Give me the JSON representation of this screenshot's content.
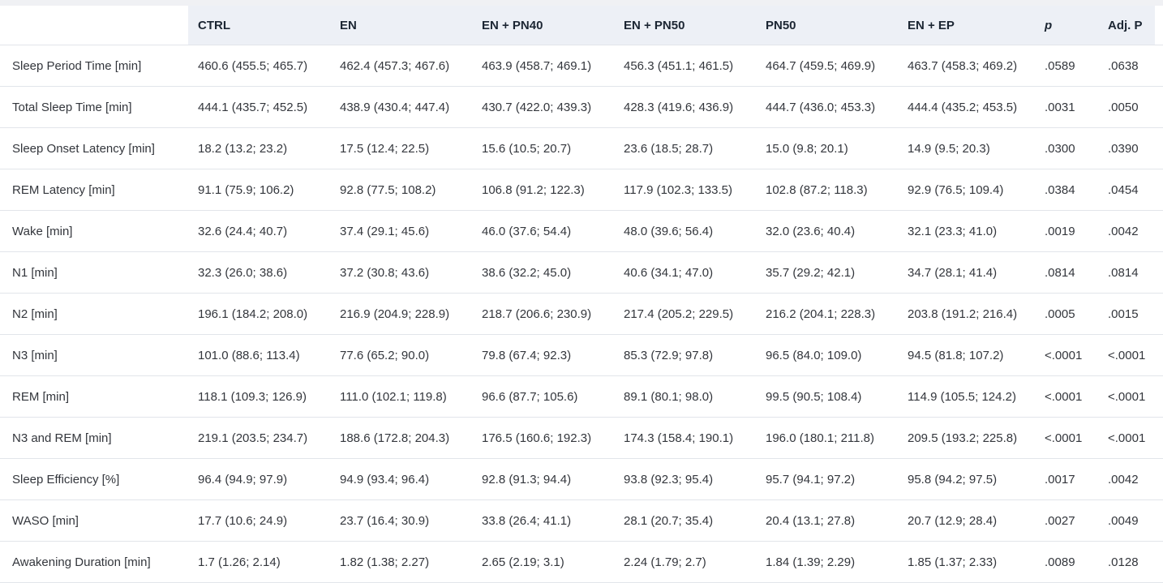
{
  "colors": {
    "page_background": "#f0f1f4",
    "header_background": "#edf0f6",
    "header_text": "#1c2633",
    "body_text": "#33363c",
    "row_border": "#e2e5ea",
    "table_background": "#ffffff"
  },
  "chart_data": {
    "type": "table",
    "columns": [
      "",
      "CTRL",
      "EN",
      "EN + PN40",
      "EN + PN50",
      "PN50",
      "EN + EP",
      "p",
      "Adj. P"
    ],
    "rows": [
      [
        "Sleep Period Time [min]",
        "460.6 (455.5; 465.7)",
        "462.4 (457.3; 467.6)",
        "463.9 (458.7; 469.1)",
        "456.3 (451.1; 461.5)",
        "464.7 (459.5; 469.9)",
        "463.7 (458.3; 469.2)",
        ".0589",
        ".0638"
      ],
      [
        "Total Sleep Time [min]",
        "444.1 (435.7; 452.5)",
        "438.9 (430.4; 447.4)",
        "430.7 (422.0; 439.3)",
        "428.3 (419.6; 436.9)",
        "444.7 (436.0; 453.3)",
        "444.4 (435.2; 453.5)",
        ".0031",
        ".0050"
      ],
      [
        "Sleep Onset Latency [min]",
        "18.2 (13.2; 23.2)",
        "17.5 (12.4; 22.5)",
        "15.6 (10.5; 20.7)",
        "23.6 (18.5; 28.7)",
        "15.0 (9.8; 20.1)",
        "14.9 (9.5; 20.3)",
        ".0300",
        ".0390"
      ],
      [
        "REM Latency [min]",
        "91.1 (75.9; 106.2)",
        "92.8 (77.5; 108.2)",
        "106.8 (91.2; 122.3)",
        "117.9 (102.3; 133.5)",
        "102.8 (87.2; 118.3)",
        "92.9 (76.5; 109.4)",
        ".0384",
        ".0454"
      ],
      [
        "Wake [min]",
        "32.6 (24.4; 40.7)",
        "37.4 (29.1; 45.6)",
        "46.0 (37.6; 54.4)",
        "48.0 (39.6; 56.4)",
        "32.0 (23.6; 40.4)",
        "32.1 (23.3; 41.0)",
        ".0019",
        ".0042"
      ],
      [
        "N1 [min]",
        "32.3 (26.0; 38.6)",
        "37.2 (30.8; 43.6)",
        "38.6 (32.2; 45.0)",
        "40.6 (34.1; 47.0)",
        "35.7 (29.2; 42.1)",
        "34.7 (28.1; 41.4)",
        ".0814",
        ".0814"
      ],
      [
        "N2 [min]",
        "196.1 (184.2; 208.0)",
        "216.9 (204.9; 228.9)",
        "218.7 (206.6; 230.9)",
        "217.4 (205.2; 229.5)",
        "216.2 (204.1; 228.3)",
        "203.8 (191.2; 216.4)",
        ".0005",
        ".0015"
      ],
      [
        "N3 [min]",
        "101.0 (88.6; 113.4)",
        "77.6 (65.2; 90.0)",
        "79.8 (67.4; 92.3)",
        "85.3 (72.9; 97.8)",
        "96.5 (84.0; 109.0)",
        "94.5 (81.8; 107.2)",
        "<.0001",
        "<.0001"
      ],
      [
        "REM [min]",
        "118.1 (109.3; 126.9)",
        "111.0 (102.1; 119.8)",
        "96.6 (87.7; 105.6)",
        "89.1 (80.1; 98.0)",
        "99.5 (90.5; 108.4)",
        "114.9 (105.5; 124.2)",
        "<.0001",
        "<.0001"
      ],
      [
        "N3 and REM [min]",
        "219.1 (203.5; 234.7)",
        "188.6 (172.8; 204.3)",
        "176.5 (160.6; 192.3)",
        "174.3 (158.4; 190.1)",
        "196.0 (180.1; 211.8)",
        "209.5 (193.2; 225.8)",
        "<.0001",
        "<.0001"
      ],
      [
        "Sleep Efficiency [%]",
        "96.4 (94.9; 97.9)",
        "94.9 (93.4; 96.4)",
        "92.8 (91.3; 94.4)",
        "93.8 (92.3; 95.4)",
        "95.7 (94.1; 97.2)",
        "95.8 (94.2; 97.5)",
        ".0017",
        ".0042"
      ],
      [
        "WASO [min]",
        "17.7 (10.6; 24.9)",
        "23.7 (16.4; 30.9)",
        "33.8 (26.4; 41.1)",
        "28.1 (20.7; 35.4)",
        "20.4 (13.1; 27.8)",
        "20.7 (12.9; 28.4)",
        ".0027",
        ".0049"
      ],
      [
        "Awakening Duration [min]",
        "1.7 (1.26; 2.14)",
        "1.82 (1.38; 2.27)",
        "2.65 (2.19; 3.1)",
        "2.24 (1.79; 2.7)",
        "1.84 (1.39; 2.29)",
        "1.85 (1.37; 2.33)",
        ".0089",
        ".0128"
      ]
    ]
  }
}
